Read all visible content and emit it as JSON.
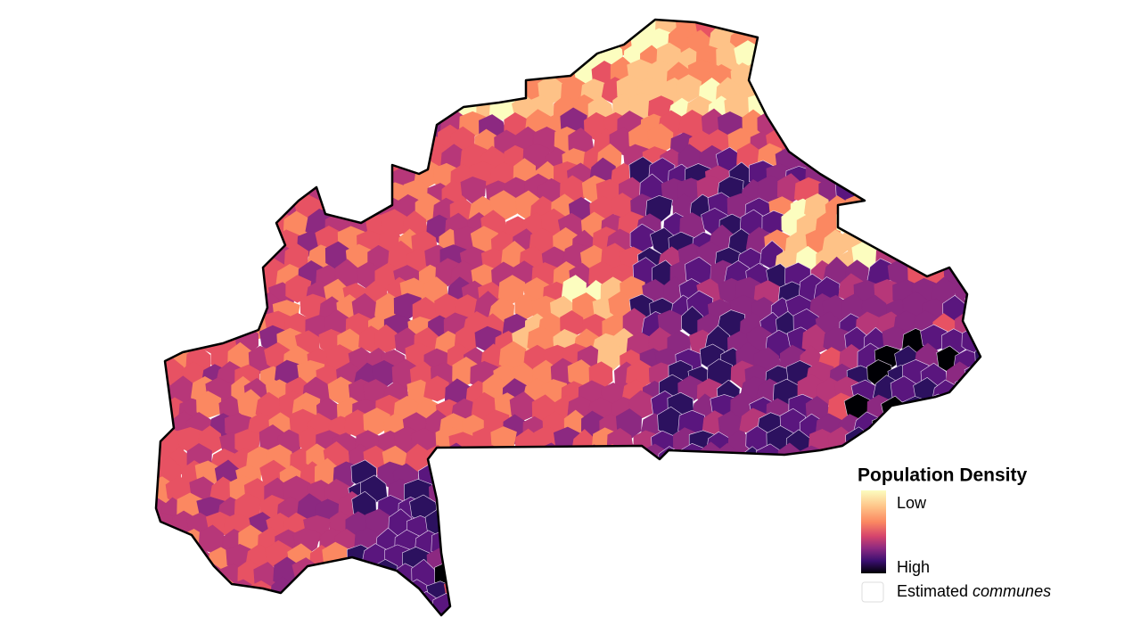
{
  "map": {
    "legend": {
      "title": "Population Density",
      "low": "Low",
      "high": "High",
      "estimated": "Estimated",
      "estimated_italic": "communes"
    }
  }
}
